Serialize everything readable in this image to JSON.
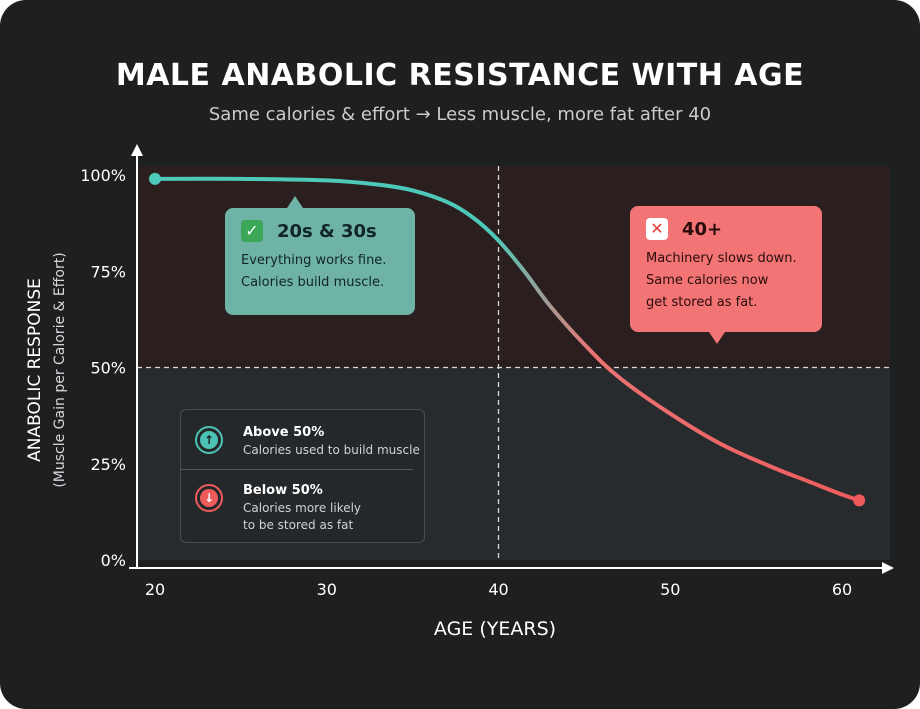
{
  "chart_data": {
    "type": "line",
    "title": "MALE ANABOLIC RESISTANCE WITH AGE",
    "subtitle": "Same calories & effort → Less muscle, more fat after 40",
    "xlabel": "AGE (YEARS)",
    "ylabel": "ANABOLIC RESPONSE",
    "ylabel_sub": "(Muscle Gain per Calorie & Effort)",
    "xlim": [
      19,
      64
    ],
    "ylim": [
      0,
      100
    ],
    "x_ticks": [
      20,
      30,
      40,
      50,
      60
    ],
    "x_tick_labels": [
      "20",
      "30",
      "40",
      "50",
      "60"
    ],
    "y_ticks": [
      0,
      25,
      50,
      75,
      100
    ],
    "y_tick_labels": [
      "0%",
      "25%",
      "50%",
      "75%",
      "100%"
    ],
    "threshold_y": 50,
    "divider_x": 40,
    "series": [
      {
        "x": [
          20,
          25,
          30,
          33,
          35,
          37,
          38.5,
          40,
          41.5,
          43,
          45,
          47,
          50,
          53,
          56,
          58,
          60,
          61
        ],
        "y": [
          99,
          99,
          98.6,
          97.5,
          96,
          93,
          89,
          83,
          75,
          66,
          56,
          47.5,
          38,
          30,
          24,
          20.5,
          17,
          15.5
        ],
        "colors": {
          "start": "#4ec9b9",
          "end": "#ef5b5b"
        }
      }
    ],
    "zones": {
      "above_color": "#2a1e1f",
      "below_color": "#282b2e"
    }
  },
  "callouts": {
    "young": {
      "heading": "20s & 30s",
      "lines": [
        "Everything works fine.",
        "Calories build muscle."
      ],
      "badge_icon": "check-mark-icon"
    },
    "older": {
      "heading": "40+",
      "lines": [
        "Machinery slows down.",
        "Same calories now",
        "get stored as fat."
      ],
      "badge_icon": "cross-mark-icon"
    }
  },
  "legend": {
    "above": {
      "label": "Above 50%",
      "desc": [
        "Calories used to build muscle"
      ],
      "icon": "arrow-up-icon"
    },
    "below": {
      "label": "Below 50%",
      "desc": [
        "Calories more likely",
        "to be stored as fat"
      ],
      "icon": "arrow-down-icon"
    }
  },
  "colors": {
    "background": "#1e1f21",
    "accent_teal": "#4ec9b9",
    "accent_red": "#ef5b5b",
    "axis": "#ffffff"
  }
}
